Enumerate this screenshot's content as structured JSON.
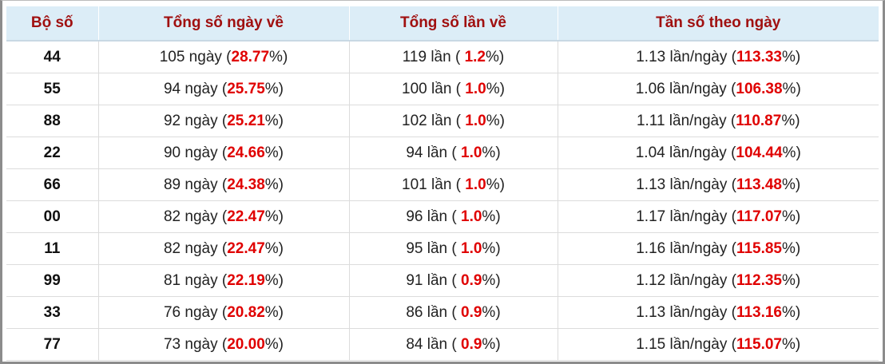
{
  "table": {
    "headers": [
      "Bộ số",
      "Tổng số ngày về",
      "Tổng số lần về",
      "Tần số theo ngày"
    ],
    "rows": [
      [
        "44",
        {
          "text": "105 ngày (",
          "highlight": "28.77",
          "suffix": "%)"
        },
        {
          "text": "119 lần ( ",
          "highlight": "1.2",
          "suffix": "%)"
        },
        {
          "text": "1.13 lần/ngày (",
          "highlight": "113.33",
          "suffix": "%)"
        }
      ],
      [
        "55",
        {
          "text": "94 ngày (",
          "highlight": "25.75",
          "suffix": "%)"
        },
        {
          "text": "100 lần ( ",
          "highlight": "1.0",
          "suffix": "%)"
        },
        {
          "text": "1.06 lần/ngày (",
          "highlight": "106.38",
          "suffix": "%)"
        }
      ],
      [
        "88",
        {
          "text": "92 ngày (",
          "highlight": "25.21",
          "suffix": "%)"
        },
        {
          "text": "102 lần ( ",
          "highlight": "1.0",
          "suffix": "%)"
        },
        {
          "text": "1.11 lần/ngày (",
          "highlight": "110.87",
          "suffix": "%)"
        }
      ],
      [
        "22",
        {
          "text": "90 ngày (",
          "highlight": "24.66",
          "suffix": "%)"
        },
        {
          "text": "94 lần ( ",
          "highlight": "1.0",
          "suffix": "%)"
        },
        {
          "text": "1.04 lần/ngày (",
          "highlight": "104.44",
          "suffix": "%)"
        }
      ],
      [
        "66",
        {
          "text": "89 ngày (",
          "highlight": "24.38",
          "suffix": "%)"
        },
        {
          "text": "101 lần ( ",
          "highlight": "1.0",
          "suffix": "%)"
        },
        {
          "text": "1.13 lần/ngày (",
          "highlight": "113.48",
          "suffix": "%)"
        }
      ],
      [
        "00",
        {
          "text": "82 ngày (",
          "highlight": "22.47",
          "suffix": "%)"
        },
        {
          "text": "96 lần ( ",
          "highlight": "1.0",
          "suffix": "%)"
        },
        {
          "text": "1.17 lần/ngày (",
          "highlight": "117.07",
          "suffix": "%)"
        }
      ],
      [
        "11",
        {
          "text": "82 ngày (",
          "highlight": "22.47",
          "suffix": "%)"
        },
        {
          "text": "95 lần ( ",
          "highlight": "1.0",
          "suffix": "%)"
        },
        {
          "text": "1.16 lần/ngày (",
          "highlight": "115.85",
          "suffix": "%)"
        }
      ],
      [
        "99",
        {
          "text": "81 ngày (",
          "highlight": "22.19",
          "suffix": "%)"
        },
        {
          "text": "91 lần ( ",
          "highlight": "0.9",
          "suffix": "%)"
        },
        {
          "text": "1.12 lần/ngày (",
          "highlight": "112.35",
          "suffix": "%)"
        }
      ],
      [
        "33",
        {
          "text": "76 ngày (",
          "highlight": "20.82",
          "suffix": "%)"
        },
        {
          "text": "86 lần ( ",
          "highlight": "0.9",
          "suffix": "%)"
        },
        {
          "text": "1.13 lần/ngày (",
          "highlight": "113.16",
          "suffix": "%)"
        }
      ],
      [
        "77",
        {
          "text": "73 ngày (",
          "highlight": "20.00",
          "suffix": "%)"
        },
        {
          "text": "84 lần ( ",
          "highlight": "0.9",
          "suffix": "%)"
        },
        {
          "text": "1.15 lần/ngày (",
          "highlight": "115.07",
          "suffix": "%)"
        }
      ]
    ]
  }
}
